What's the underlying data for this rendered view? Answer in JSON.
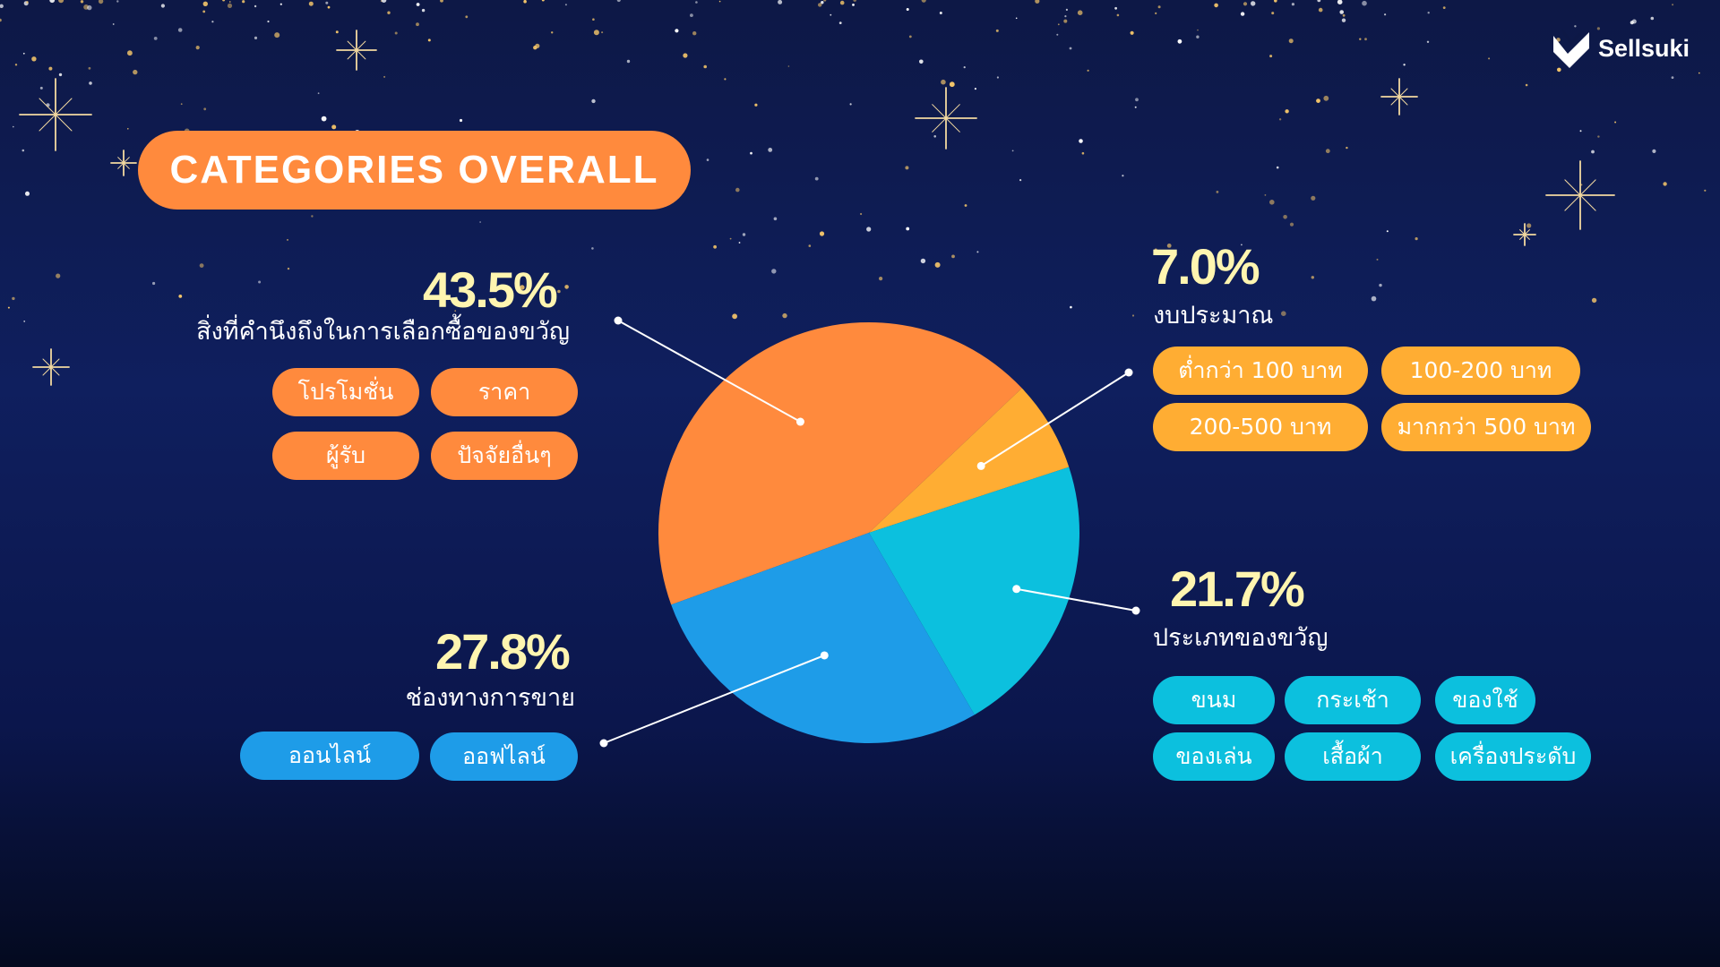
{
  "logo": {
    "text": "Sellsuki"
  },
  "title": "CATEGORIES OVERALL",
  "colors": {
    "orange": "#ff8a3d",
    "yellow": "#ffad33",
    "blue": "#1e9ce8",
    "cyan": "#0cc0de",
    "accent_text": "#fff5b0"
  },
  "chart_data": {
    "type": "pie",
    "slices": [
      {
        "label": "สิ่งที่คำนึงถึงในการเลือกซื้อของขวัญ",
        "value": 43.5,
        "display": "43.5%",
        "color": "#ff8a3d",
        "tags": [
          "โปรโมชั่น",
          "ราคา",
          "ผู้รับ",
          "ปัจจัยอื่นๆ"
        ]
      },
      {
        "label": "งบประมาณ",
        "value": 7.0,
        "display": "7.0%",
        "color": "#ffad33",
        "tags": [
          "ต่ำกว่า 100 บาท",
          "100-200 บาท",
          "200-500 บาท",
          "มากกว่า 500 บาท"
        ]
      },
      {
        "label": "ประเภทของขวัญ",
        "value": 21.7,
        "display": "21.7%",
        "color": "#0cc0de",
        "tags": [
          "ขนม",
          "กระเช้า",
          "ของใช้",
          "ของเล่น",
          "เสื้อผ้า",
          "เครื่องประดับ"
        ]
      },
      {
        "label": "ช่องทางการขาย",
        "value": 27.8,
        "display": "27.8%",
        "color": "#1e9ce8",
        "tags": [
          "ออนไลน์",
          "ออฟไลน์"
        ]
      }
    ]
  }
}
